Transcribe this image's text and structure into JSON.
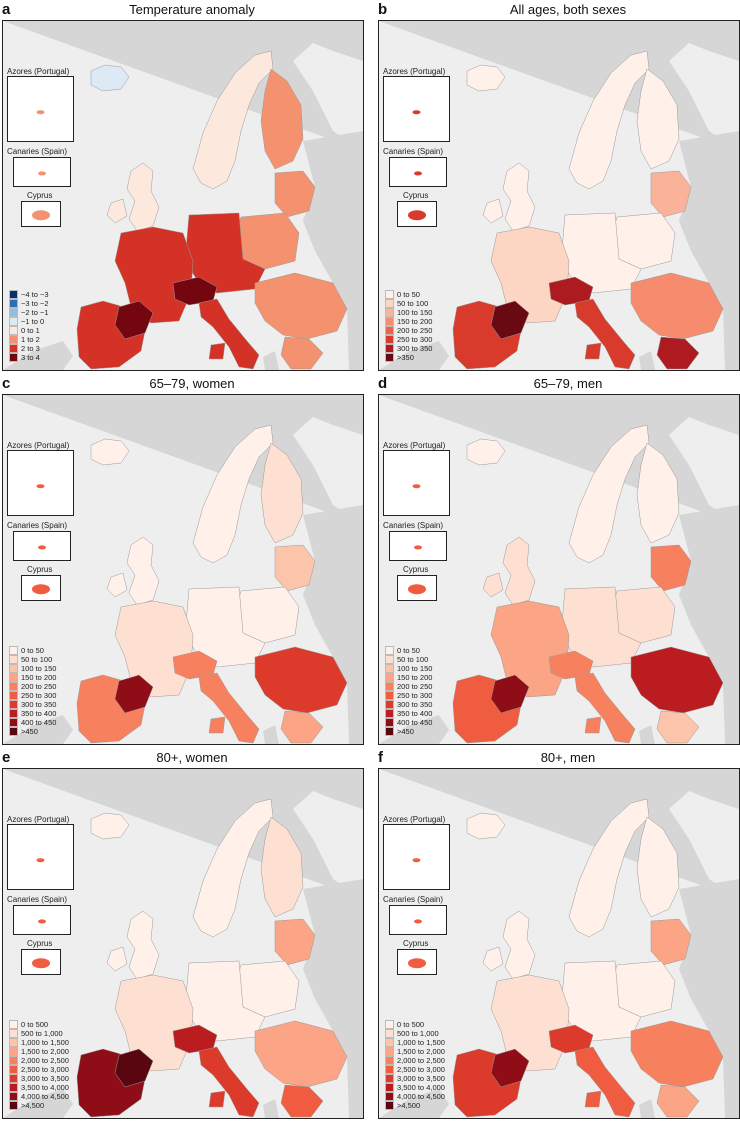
{
  "common": {
    "inset_titles": {
      "azores": "Azores (Portugal)",
      "canaries": "Canaries (Spain)",
      "cyprus": "Cyprus"
    },
    "land_color": "#f5dcd0",
    "nondata_color": "#d6d6d6",
    "sea_color": "#eeeeee"
  },
  "panels": [
    {
      "label": "a",
      "title": "Temperature anomaly",
      "legend": [
        {
          "label": "−4 to −3",
          "color": "#08306b"
        },
        {
          "label": "−3 to −2",
          "color": "#2f6db3"
        },
        {
          "label": "−2 to −1",
          "color": "#8fbfe0"
        },
        {
          "label": "−1 to 0",
          "color": "#dde9f5"
        },
        {
          "label": "0 to 1",
          "color": "#fde8de"
        },
        {
          "label": "1 to 2",
          "color": "#f4926f"
        },
        {
          "label": "2 to 3",
          "color": "#d43226"
        },
        {
          "label": "3 to 4",
          "color": "#73060f"
        }
      ],
      "region_levels": {
        "iberia": 6,
        "france": 6,
        "italy": 6,
        "central": 6,
        "balkans": 5,
        "greece": 5,
        "scandinavia": 4,
        "finland": 5,
        "baltics": 5,
        "poland": 5,
        "britain_ireland": 4,
        "iceland": 3,
        "hotspot": 7,
        "alps": 7
      }
    },
    {
      "label": "b",
      "title": "All ages, both sexes",
      "legend": [
        {
          "label": "0 to 50",
          "color": "#fff1ea"
        },
        {
          "label": "50 to 100",
          "color": "#fdd5c3"
        },
        {
          "label": "100 to 150",
          "color": "#fbb29a"
        },
        {
          "label": "150 to 200",
          "color": "#f68b6d"
        },
        {
          "label": "200 to 250",
          "color": "#ee6348"
        },
        {
          "label": "250 to 300",
          "color": "#d83a2c"
        },
        {
          "label": "300 to 350",
          "color": "#ad1a1f"
        },
        {
          ">350": "",
          "label": ">350",
          "color": "#690a12"
        }
      ],
      "region_levels": {
        "iberia": 5,
        "france": 1,
        "italy": 5,
        "central": 0,
        "balkans": 3,
        "greece": 6,
        "scandinavia": 0,
        "finland": 0,
        "baltics": 2,
        "poland": 0,
        "britain_ireland": 0,
        "iceland": 0,
        "hotspot": 7,
        "alps": 6
      }
    },
    {
      "label": "c",
      "title": "65–79, women",
      "legend": [
        {
          "label": "0 to 50",
          "color": "#fff1ea"
        },
        {
          "label": "50 to 100",
          "color": "#fee0d2"
        },
        {
          "label": "100 to 150",
          "color": "#fcc4ab"
        },
        {
          "label": "150 to 200",
          "color": "#fba486"
        },
        {
          "label": "200 to 250",
          "color": "#f7815f"
        },
        {
          "label": "250 to 300",
          "color": "#ef5c40"
        },
        {
          "label": "300 to 350",
          "color": "#dc3a2b"
        },
        {
          "label": "350 to 400",
          "color": "#bb1c20"
        },
        {
          "label": "400 to 450",
          "color": "#8e0d16"
        },
        {
          "label": ">450",
          "color": "#5a0610"
        }
      ],
      "region_levels": {
        "iberia": 4,
        "france": 1,
        "italy": 4,
        "central": 0,
        "balkans": 6,
        "greece": 3,
        "scandinavia": 0,
        "finland": 1,
        "baltics": 2,
        "poland": 0,
        "britain_ireland": 0,
        "iceland": 0,
        "hotspot": 8,
        "alps": 4
      }
    },
    {
      "label": "d",
      "title": "65–79, men",
      "legend": [
        {
          "label": "0 to 50",
          "color": "#fff1ea"
        },
        {
          "label": "50 to 100",
          "color": "#fee0d2"
        },
        {
          "label": "100 to 150",
          "color": "#fcc4ab"
        },
        {
          "label": "150 to 200",
          "color": "#fba486"
        },
        {
          "label": "200 to 250",
          "color": "#f7815f"
        },
        {
          "label": "250 to 300",
          "color": "#ef5c40"
        },
        {
          "label": "300 to 350",
          "color": "#dc3a2b"
        },
        {
          "label": "350 to 400",
          "color": "#bb1c20"
        },
        {
          "label": "400 to 450",
          "color": "#8e0d16"
        },
        {
          "label": ">450",
          "color": "#5a0610"
        }
      ],
      "region_levels": {
        "iberia": 5,
        "france": 3,
        "italy": 4,
        "central": 1,
        "balkans": 7,
        "greece": 2,
        "scandinavia": 0,
        "finland": 0,
        "baltics": 4,
        "poland": 1,
        "britain_ireland": 1,
        "iceland": 0,
        "hotspot": 8,
        "alps": 4
      }
    },
    {
      "label": "e",
      "title": "80+, women",
      "legend": [
        {
          "label": "0 to 500",
          "color": "#fff1ea"
        },
        {
          "label": "500 to 1,000",
          "color": "#fee0d2"
        },
        {
          "label": "1,000 to 1,500",
          "color": "#fcc4ab"
        },
        {
          "label": "1,500 to 2,000",
          "color": "#fba486"
        },
        {
          "label": "2,000 to 2,500",
          "color": "#f7815f"
        },
        {
          "label": "2,500 to 3,000",
          "color": "#ef5c40"
        },
        {
          "label": "3,000 to 3,500",
          "color": "#dc3a2b"
        },
        {
          "label": "3,500 to 4,000",
          "color": "#bb1c20"
        },
        {
          "label": "4,000 to 4,500",
          "color": "#8e0d16"
        },
        {
          "label": ">4,500",
          "color": "#5a0610"
        }
      ],
      "region_levels": {
        "iberia": 8,
        "france": 1,
        "italy": 6,
        "central": 0,
        "balkans": 3,
        "greece": 5,
        "scandinavia": 0,
        "finland": 1,
        "baltics": 3,
        "poland": 0,
        "britain_ireland": 0,
        "iceland": 0,
        "hotspot": 9,
        "alps": 7
      }
    },
    {
      "label": "f",
      "title": "80+, men",
      "legend": [
        {
          "label": "0 to 500",
          "color": "#fff1ea"
        },
        {
          "label": "500 to 1,000",
          "color": "#fee0d2"
        },
        {
          "label": "1,000 to 1,500",
          "color": "#fcc4ab"
        },
        {
          "label": "1,500 to 2,000",
          "color": "#fba486"
        },
        {
          "label": "2,000 to 2,500",
          "color": "#f7815f"
        },
        {
          "label": "2,500 to 3,000",
          "color": "#ef5c40"
        },
        {
          "label": "3,000 to 3,500",
          "color": "#dc3a2b"
        },
        {
          "label": "3,500 to 4,000",
          "color": "#bb1c20"
        },
        {
          "label": "4,000 to 4,500",
          "color": "#8e0d16"
        },
        {
          "label": ">4,500",
          "color": "#5a0610"
        }
      ],
      "region_levels": {
        "iberia": 6,
        "france": 1,
        "italy": 5,
        "central": 0,
        "balkans": 4,
        "greece": 3,
        "scandinavia": 0,
        "finland": 0,
        "baltics": 3,
        "poland": 0,
        "britain_ireland": 0,
        "iceland": 0,
        "hotspot": 8,
        "alps": 6
      }
    }
  ]
}
